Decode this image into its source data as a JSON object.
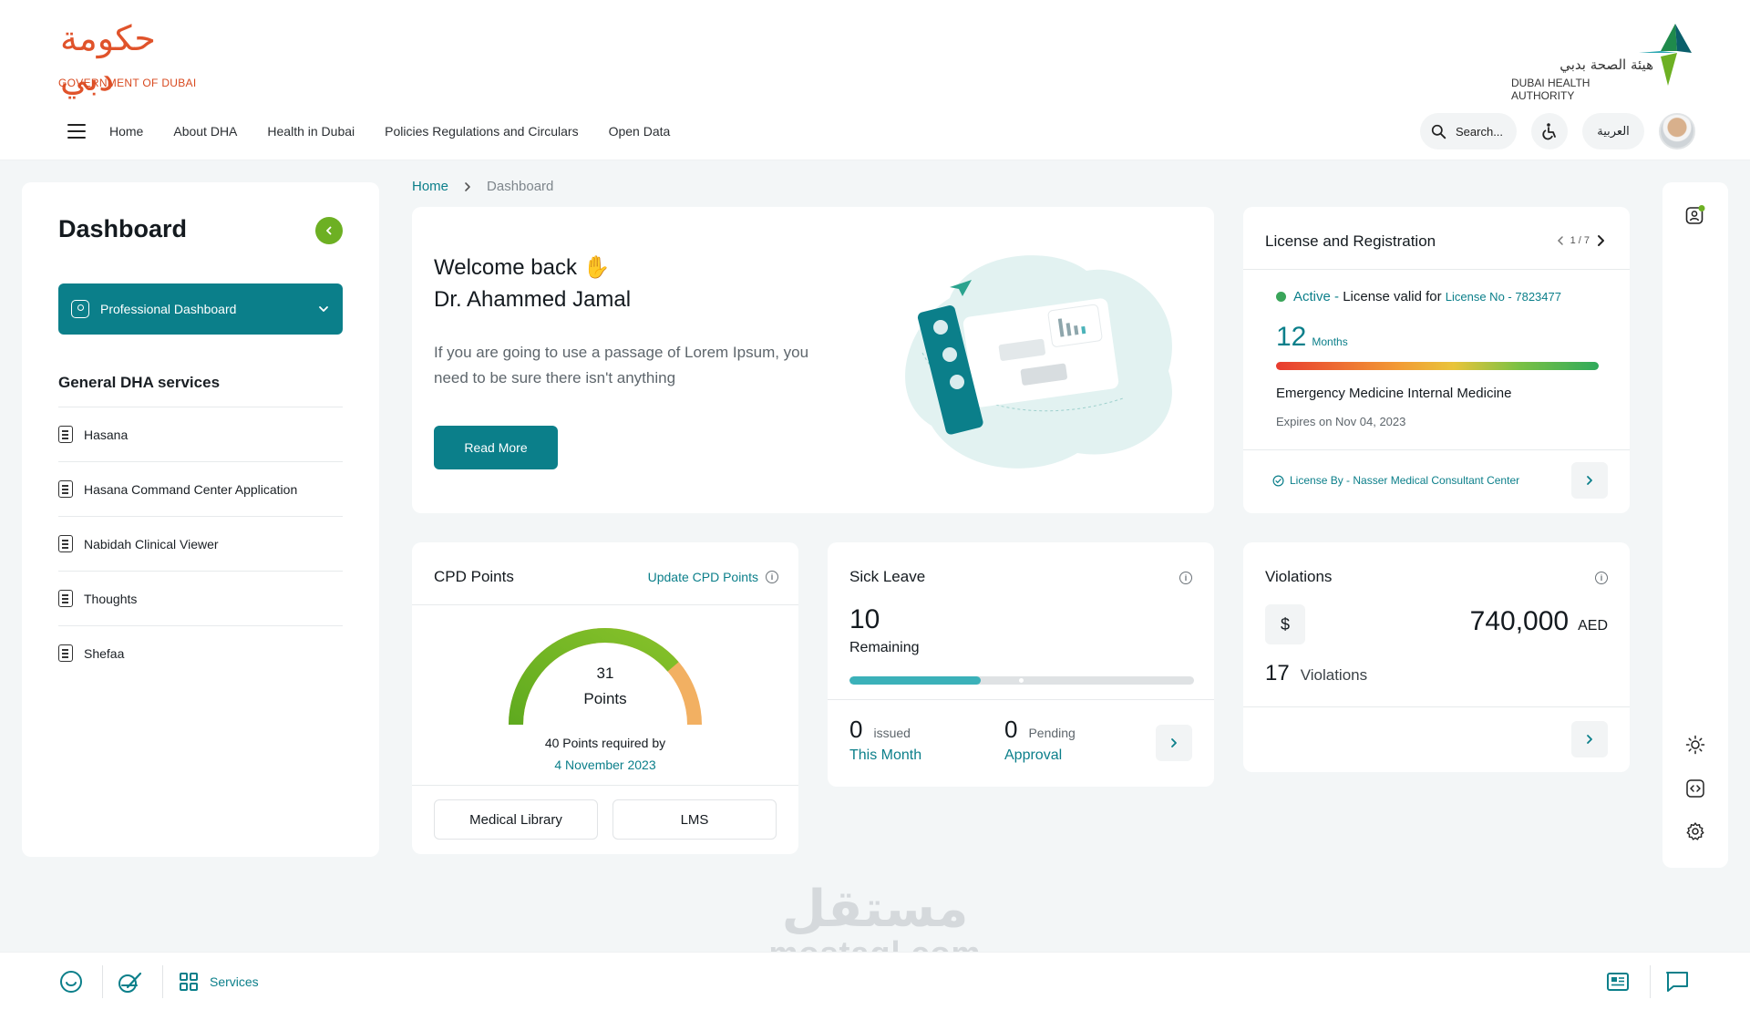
{
  "header": {
    "gov_logo_arabic": "حكومة دبي",
    "gov_logo_en": "GOVERNMENT OF DUBAI",
    "dha_logo_arabic": "هيئة الصحة بدبي",
    "dha_logo_en": "DUBAI HEALTH AUTHORITY",
    "nav": [
      "Home",
      "About DHA",
      "Health in Dubai",
      "Policies Regulations and Circulars",
      "Open Data"
    ],
    "search_placeholder": "Search...",
    "language_label": "العربية"
  },
  "sidebar": {
    "title": "Dashboard",
    "dropdown_label": "Professional Dashboard",
    "section_title": "General DHA services",
    "items": [
      "Hasana",
      "Hasana Command Center Application",
      "Nabidah Clinical Viewer",
      "Thoughts",
      "Shefaa"
    ]
  },
  "breadcrumb": {
    "home": "Home",
    "current": "Dashboard"
  },
  "welcome": {
    "greeting": "Welcome back",
    "name": "Dr. Ahammed Jamal",
    "text": "If you are going to use a passage of Lorem Ipsum, you need to be sure there isn't anything",
    "button": "Read More"
  },
  "license": {
    "title": "License and Registration",
    "pager": "1 / 7",
    "status": "Active -",
    "valid_text": "License valid for",
    "license_no": "License No - 7823477",
    "months_value": "12",
    "months_unit": "Months",
    "remaining_fraction": 1.0,
    "specialty": "Emergency Medicine Internal Medicine",
    "expires": "Expires on Nov 04, 2023",
    "license_by": "License By - Nasser Medical Consultant Center"
  },
  "cpd": {
    "title": "CPD Points",
    "update_link": "Update CPD Points",
    "points": "31",
    "points_label": "Points",
    "required_text": "40 Points required by",
    "required_date": "4 November 2023",
    "gauge_value": 31,
    "gauge_max": 40,
    "buttons": [
      "Medical Library",
      "LMS"
    ]
  },
  "sick_leave": {
    "title": "Sick Leave",
    "remaining": "10",
    "remaining_label": "Remaining",
    "progress_fraction": 0.38,
    "issued_value": "0",
    "issued_label": "issued",
    "issued_sub": "This Month",
    "pending_value": "0",
    "pending_label": "Pending",
    "pending_sub": "Approval"
  },
  "violations": {
    "title": "Violations",
    "currency_symbol": "$",
    "amount": "740,000",
    "currency": "AED",
    "count": "17",
    "count_label": "Violations"
  },
  "footer": {
    "services_label": "Services"
  },
  "watermark": {
    "ar": "مستقل",
    "en": "mostaql.com"
  },
  "colors": {
    "primary": "#0b7f8a",
    "accent_green": "#6db023",
    "status_active": "#3aa55a"
  }
}
